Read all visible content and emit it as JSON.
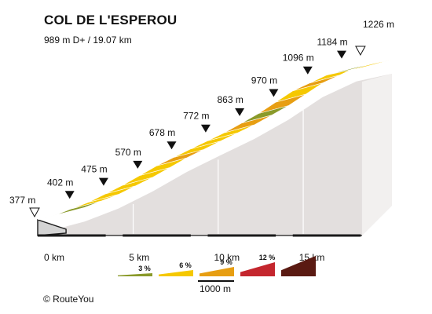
{
  "title": "COL DE L'ESPEROU",
  "subtitle": "989 m D+ / 19.07 km",
  "credit": "©  RouteYou",
  "chart_data": {
    "type": "area",
    "title": "COL DE L'ESPEROU",
    "subtitle": "989 m D+ / 19.07 km",
    "x_unit": "km",
    "y_unit": "m",
    "distance_ticks": [
      {
        "km": 0,
        "label": "0 km"
      },
      {
        "km": 5,
        "label": "5 km"
      },
      {
        "km": 10,
        "label": "10 km"
      },
      {
        "km": 15,
        "label": "15 km"
      }
    ],
    "start_marker": {
      "km": 0,
      "label": "377 m"
    },
    "summit_marker": {
      "km": 19.07,
      "label": "1226 m"
    },
    "km_markers": [
      {
        "km": 1,
        "label": "402 m"
      },
      {
        "km": 3,
        "label": "475 m"
      },
      {
        "km": 5,
        "label": "570 m"
      },
      {
        "km": 7,
        "label": "678 m"
      },
      {
        "km": 9,
        "label": "772 m"
      },
      {
        "km": 11,
        "label": "863 m"
      },
      {
        "km": 13,
        "label": "970 m"
      },
      {
        "km": 15,
        "label": "1096 m"
      },
      {
        "km": 17,
        "label": "1184 m"
      }
    ],
    "segments": [
      {
        "from_km": 0,
        "to_km": 1,
        "gradient": 3
      },
      {
        "from_km": 1,
        "to_km": 2,
        "gradient": 3
      },
      {
        "from_km": 2,
        "to_km": 3,
        "gradient": 6
      },
      {
        "from_km": 3,
        "to_km": 4,
        "gradient": 6
      },
      {
        "from_km": 4,
        "to_km": 5,
        "gradient": 6
      },
      {
        "from_km": 5,
        "to_km": 6,
        "gradient": 6
      },
      {
        "from_km": 6,
        "to_km": 7,
        "gradient": 6
      },
      {
        "from_km": 7,
        "to_km": 8,
        "gradient": 9
      },
      {
        "from_km": 8,
        "to_km": 9,
        "gradient": 6
      },
      {
        "from_km": 9,
        "to_km": 10,
        "gradient": 6
      },
      {
        "from_km": 10,
        "to_km": 11,
        "gradient": 6
      },
      {
        "from_km": 11,
        "to_km": 12,
        "gradient": 9
      },
      {
        "from_km": 12,
        "to_km": 13,
        "gradient": 3
      },
      {
        "from_km": 13,
        "to_km": 14,
        "gradient": 9
      },
      {
        "from_km": 14,
        "to_km": 15,
        "gradient": 6
      },
      {
        "from_km": 15,
        "to_km": 16,
        "gradient": 9
      },
      {
        "from_km": 16,
        "to_km": 17,
        "gradient": 6
      },
      {
        "from_km": 17,
        "to_km": 18,
        "gradient": 3
      },
      {
        "from_km": 18,
        "to_km": 19.07,
        "gradient": 6
      }
    ],
    "legend": {
      "items": [
        {
          "label": "3 %",
          "color": "#8a9a2a"
        },
        {
          "label": "6 %",
          "color": "#f5c800"
        },
        {
          "label": "9 %",
          "color": "#e79e12"
        },
        {
          "label": "12 %",
          "color": "#c4262e"
        },
        {
          "label": "",
          "color": "#5a1a12"
        }
      ],
      "scale_label": "1000 m"
    },
    "colors": {
      "side_face": "#e3dfde",
      "front_face": "#d4d4d4",
      "axis": "#1a1a1a"
    }
  }
}
